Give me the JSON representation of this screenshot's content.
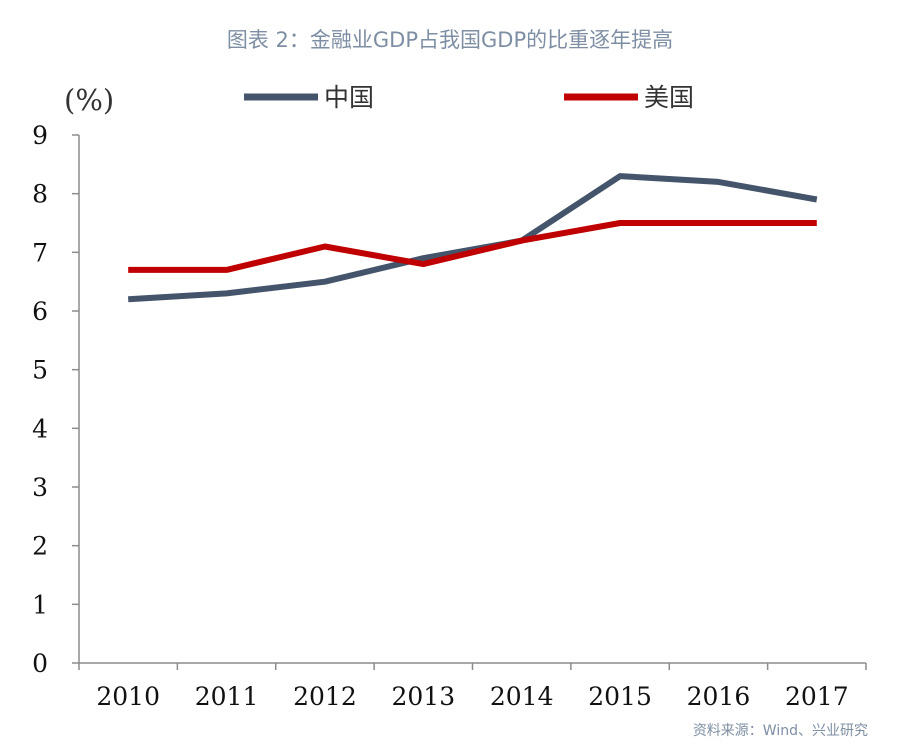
{
  "title": "图表 2：金融业GDP占我国GDP的比重逐年提高",
  "source": "资料来源：Wind、兴业研究",
  "chart_data": {
    "type": "line",
    "unit_label": "(%)",
    "x": [
      "2010",
      "2011",
      "2012",
      "2013",
      "2014",
      "2015",
      "2016",
      "2017"
    ],
    "series": [
      {
        "name": "中国",
        "color": "#44546a",
        "values": [
          6.2,
          6.3,
          6.5,
          6.9,
          7.2,
          8.3,
          8.2,
          7.9
        ]
      },
      {
        "name": "美国",
        "color": "#c00000",
        "values": [
          6.7,
          6.7,
          7.1,
          6.8,
          7.2,
          7.5,
          7.5,
          7.5
        ]
      }
    ],
    "yticks": [
      "0",
      "1",
      "2",
      "3",
      "4",
      "5",
      "6",
      "7",
      "8",
      "9"
    ],
    "ylim": [
      0,
      9
    ],
    "grid": false,
    "legend": "top"
  }
}
